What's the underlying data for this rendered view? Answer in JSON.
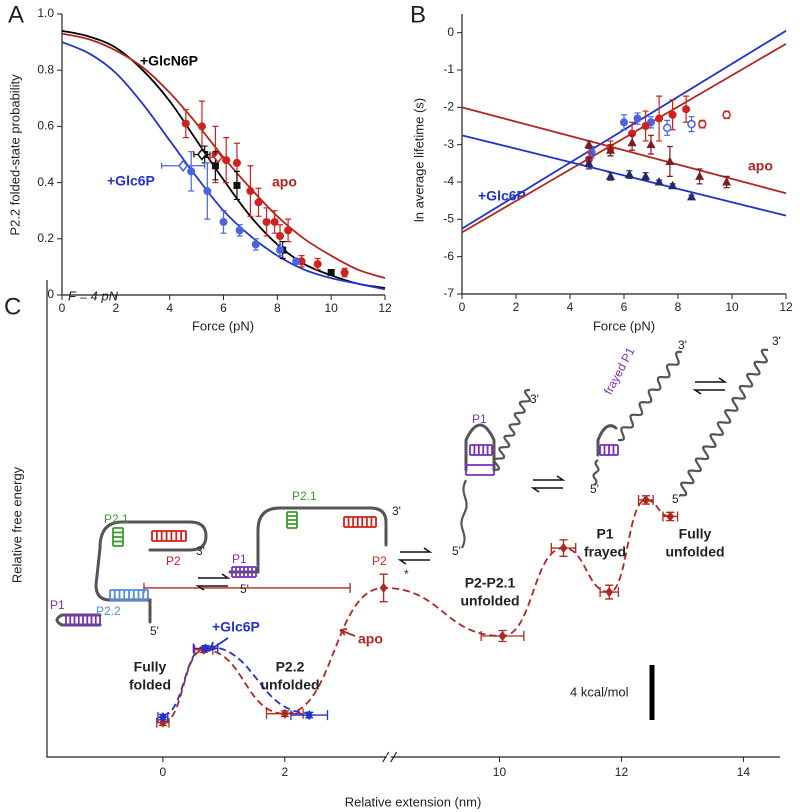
{
  "chart_data": [
    {
      "type": "line",
      "panel": "A",
      "xlabel": "Force (pN)",
      "ylabel": "P2.2 folded-state probability",
      "xlim": [
        0,
        12
      ],
      "xticks": [
        0,
        2,
        4,
        6,
        8,
        10,
        12
      ],
      "ylim": [
        0,
        1
      ],
      "yticks": [
        0,
        0.2,
        0.4,
        0.6,
        0.8,
        {
          "value": 1,
          "label": "1.0"
        }
      ],
      "series": [
        {
          "name": "+GlcN6P",
          "color": "#000000",
          "mode": "line",
          "x": [
            0,
            1,
            2,
            3,
            4,
            5,
            6,
            7,
            8,
            9,
            10,
            11,
            12
          ],
          "values": [
            0.94,
            0.92,
            0.88,
            0.8,
            0.69,
            0.55,
            0.41,
            0.28,
            0.18,
            0.11,
            0.07,
            0.04,
            0.025
          ]
        },
        {
          "name": "apo",
          "color": "#b3261e",
          "mode": "line",
          "x": [
            0,
            1,
            2,
            3,
            4,
            5,
            6,
            7,
            8,
            9,
            10,
            11,
            12
          ],
          "values": [
            0.93,
            0.91,
            0.87,
            0.81,
            0.72,
            0.61,
            0.49,
            0.38,
            0.28,
            0.2,
            0.14,
            0.09,
            0.06
          ]
        },
        {
          "name": "+Glc6P",
          "color": "#2233cc",
          "mode": "line",
          "x": [
            0,
            1,
            2,
            3,
            4,
            5,
            6,
            7,
            8,
            9,
            10,
            11,
            12
          ],
          "values": [
            0.9,
            0.86,
            0.79,
            0.68,
            0.55,
            0.42,
            0.3,
            0.21,
            0.14,
            0.09,
            0.06,
            0.04,
            0.02
          ]
        },
        {
          "color": "#d0211c",
          "mode": "markers",
          "marker": "circle",
          "x": [
            4.6,
            5.2,
            5.7,
            6.1,
            6.5,
            7.0,
            7.3,
            7.6,
            7.9,
            8.1,
            8.4,
            8.9,
            9.5,
            10.5
          ],
          "values": [
            0.61,
            0.6,
            0.5,
            0.48,
            0.47,
            0.37,
            0.33,
            0.26,
            0.26,
            0.21,
            0.23,
            0.12,
            0.11,
            0.08
          ],
          "errors": [
            0.05,
            0.09,
            0.1,
            0.08,
            0.07,
            0.09,
            0.05,
            0.05,
            0.04,
            0.04,
            0.04,
            0.02,
            0.02,
            0.015
          ]
        },
        {
          "color": "#111111",
          "mode": "markers",
          "marker": "square",
          "x": [
            5.3,
            5.7,
            6.5,
            8.2,
            10.0
          ],
          "values": [
            0.5,
            0.46,
            0.39,
            0.16,
            0.08
          ],
          "errors": [
            0.03,
            0.05,
            0.05,
            0.03,
            0.01
          ]
        },
        {
          "color": "#4a63e0",
          "mode": "markers",
          "marker": "circle",
          "x": [
            4.8,
            5.4,
            6.0,
            6.6,
            7.2,
            8.1,
            8.7
          ],
          "values": [
            0.44,
            0.37,
            0.26,
            0.23,
            0.18,
            0.16,
            0.12
          ],
          "errors": [
            0.07,
            0.1,
            0.04,
            0.02,
            0.02,
            0.02,
            0.01
          ]
        },
        {
          "color": "#4a63e0",
          "mode": "markers",
          "marker": "open-diamond",
          "x": [
            4.5
          ],
          "values": [
            0.46
          ],
          "xerr": [
            0.8
          ]
        },
        {
          "color": "#111111",
          "mode": "markers",
          "marker": "open-diamond",
          "x": [
            5.2
          ],
          "values": [
            0.5
          ],
          "xerr": [
            0.3
          ]
        },
        {
          "color": "#d0211c",
          "mode": "markers",
          "marker": "open-diamond",
          "x": [
            5.8
          ],
          "values": [
            0.49
          ],
          "xerr": [
            0.3
          ]
        }
      ]
    },
    {
      "type": "line",
      "panel": "B",
      "xlabel": "Force (pN)",
      "ylabel": "ln average lifetime (s)",
      "xlim": [
        0,
        12
      ],
      "xticks": [
        0,
        2,
        4,
        6,
        8,
        10,
        12
      ],
      "ylim": [
        -7,
        0.5
      ],
      "yticks": [
        -7,
        -6,
        -5,
        -4,
        -3,
        -2,
        -1,
        0
      ],
      "series": [
        {
          "name": "+Glc6P",
          "color": "#2233cc",
          "mode": "line",
          "x": [
            0,
            12
          ],
          "values": [
            -5.25,
            0.05
          ]
        },
        {
          "name": "apo",
          "color": "#b3261e",
          "mode": "line",
          "x": [
            0,
            12
          ],
          "values": [
            -5.35,
            -0.3
          ]
        },
        {
          "color": "#b3261e",
          "mode": "line",
          "x": [
            0,
            12
          ],
          "values": [
            -2.0,
            -4.3
          ]
        },
        {
          "color": "#2233cc",
          "mode": "line",
          "x": [
            0,
            12
          ],
          "values": [
            -2.75,
            -4.9
          ]
        },
        {
          "color": "#4a63e0",
          "mode": "markers",
          "marker": "circle",
          "x": [
            4.8,
            6.0,
            6.5,
            7.0
          ],
          "values": [
            -3.2,
            -2.4,
            -2.3,
            -2.4
          ],
          "errors": [
            0.15,
            0.2,
            0.15,
            0.15
          ]
        },
        {
          "color": "#d0211c",
          "mode": "markers",
          "marker": "circle",
          "x": [
            4.7,
            5.5,
            6.3,
            6.8,
            7.3,
            7.8,
            8.3
          ],
          "values": [
            -3.4,
            -3.1,
            -2.7,
            -2.5,
            -2.3,
            -2.2,
            -2.05
          ],
          "errors": [
            0.2,
            0.2,
            0.3,
            0.4,
            0.6,
            0.4,
            0.35
          ]
        },
        {
          "color": "#4a63e0",
          "mode": "markers",
          "marker": "open-circle",
          "x": [
            7.6,
            8.5
          ],
          "values": [
            -2.55,
            -2.45
          ],
          "errors": [
            0.2,
            0.2
          ]
        },
        {
          "color": "#d0211c",
          "mode": "markers",
          "marker": "open-circle",
          "x": [
            8.9,
            9.8
          ],
          "values": [
            -2.45,
            -2.2
          ],
          "errors": [
            0.1,
            0.1
          ]
        },
        {
          "color": "#7a1f1f",
          "mode": "markers",
          "marker": "triangle",
          "x": [
            4.7,
            5.5,
            6.3,
            7.0,
            7.7,
            8.8,
            9.8
          ],
          "values": [
            -3.0,
            -3.15,
            -2.95,
            -3.0,
            -3.45,
            -3.85,
            -4.0
          ],
          "errors": [
            0.1,
            0.15,
            0.2,
            0.25,
            0.4,
            0.2,
            0.15
          ]
        },
        {
          "color": "#1f2a6b",
          "mode": "markers",
          "marker": "triangle",
          "x": [
            4.7,
            5.5,
            6.2,
            6.8,
            7.3,
            7.8,
            8.5
          ],
          "values": [
            -3.5,
            -3.85,
            -3.8,
            -3.85,
            -4.0,
            -4.1,
            -4.4
          ],
          "errors": [
            0.15,
            0.1,
            0.1,
            0.1,
            0.05,
            0.05,
            0.05
          ]
        }
      ]
    },
    {
      "type": "landscape",
      "panel": "C",
      "xlabel": "Relative extension (nm)",
      "ylabel": "Relative free energy",
      "xlim": [
        -1.9,
        14.6
      ],
      "xbreak": [
        3.72,
        8.2
      ],
      "xticks": [
        0,
        2,
        10,
        12,
        14
      ],
      "ylim": [
        -2.5,
        32.2
      ],
      "force_label": "F = 4 pN",
      "series": [
        {
          "name": "apo",
          "color": "#b3261e",
          "x": [
            0,
            0.67,
            2.0,
            3.62,
            10.05,
            11.05,
            11.8,
            12.4,
            12.8
          ],
          "values": [
            0,
            5.3,
            0.65,
            9.8,
            6.3,
            12.7,
            9.5,
            16.2,
            15.0
          ],
          "xerr": [
            0.1,
            0.15,
            0.3,
            0.55,
            0.35,
            0.2,
            0.15,
            0.12,
            0.12
          ],
          "errors": [
            0.2,
            0.2,
            0.2,
            1.0,
            0.4,
            0.6,
            0.5,
            0.3,
            0.3
          ]
        },
        {
          "name": "+Glc6P",
          "color": "#2233cc",
          "x": [
            0,
            0.7,
            2.4
          ],
          "values": [
            0.4,
            5.4,
            0.55
          ],
          "xerr": [
            0.08,
            0.2,
            0.3
          ],
          "errors": [
            0.2,
            0.2,
            0.2
          ]
        }
      ],
      "states": [
        {
          "lines": [
            "Fully",
            "folded"
          ]
        },
        {
          "lines": [
            "P2.2",
            "unfolded"
          ]
        },
        {
          "lines": [
            "P2-P2.1",
            "unfolded"
          ]
        },
        {
          "lines": [
            "P1",
            "frayed"
          ]
        },
        {
          "lines": [
            "Fully",
            "unfolded"
          ]
        }
      ],
      "scale_bar": {
        "value": 4,
        "label": "4 kcal/mol"
      }
    }
  ],
  "structures": [
    {
      "labels": [
        "P1",
        "P2.2",
        "P2.1",
        "P2",
        "3'",
        "5'"
      ]
    },
    {
      "labels": [
        "P1",
        "P2.1",
        "P2",
        "3'",
        "5'"
      ]
    },
    {
      "labels": [
        "P1",
        "3'",
        "5'"
      ]
    },
    {
      "labels": [
        "frayed P1",
        "3'",
        "5'"
      ]
    },
    {
      "labels": [
        "3'",
        "5'"
      ]
    }
  ],
  "transition_mark": "*"
}
